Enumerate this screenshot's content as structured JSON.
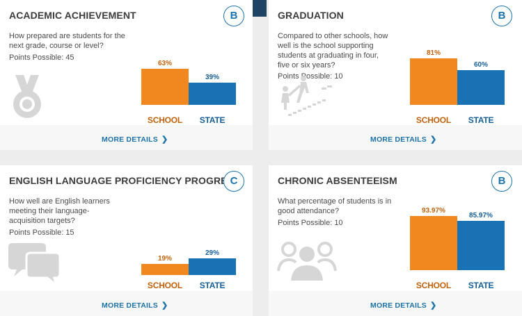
{
  "cards": [
    {
      "title": "ACADEMIC ACHIEVEMENT",
      "grade": "B",
      "question": "How prepared are students for the next grade, course or level?",
      "points": "Points Possible: 45",
      "more": "MORE DETAILS",
      "icon": "medal-icon",
      "chart_data": {
        "type": "bar",
        "categories": [
          "SCHOOL",
          "STATE"
        ],
        "values": [
          63,
          39
        ],
        "value_labels": [
          "63%",
          "39%"
        ]
      }
    },
    {
      "title": "GRADUATION",
      "grade": "B",
      "question": "Compared to other schools, how well is the school supporting students at graduating in four, five or six years?",
      "points": "Points Possible: 10",
      "more": "MORE DETAILS",
      "icon": "climbing-steps-icon",
      "chart_data": {
        "type": "bar",
        "categories": [
          "SCHOOL",
          "STATE"
        ],
        "values": [
          81,
          60
        ],
        "value_labels": [
          "81%",
          "60%"
        ]
      }
    },
    {
      "title": "ENGLISH LANGUAGE PROFICIENCY PROGRESS",
      "grade": "C",
      "question": "How well are English learners meeting their language-acquisition targets?",
      "points": "Points Possible: 15",
      "more": "MORE DETAILS",
      "icon": "speech-bubbles-icon",
      "chart_data": {
        "type": "bar",
        "categories": [
          "SCHOOL",
          "STATE"
        ],
        "values": [
          19,
          29
        ],
        "value_labels": [
          "19%",
          "29%"
        ]
      }
    },
    {
      "title": "CHRONIC ABSENTEEISM",
      "grade": "B",
      "question": "What percentage of students is in good attendance?",
      "points": "Points Possible: 10",
      "more": "MORE DETAILS",
      "icon": "people-group-icon",
      "chart_data": {
        "type": "bar",
        "categories": [
          "SCHOOL",
          "STATE"
        ],
        "values": [
          93.97,
          85.97
        ],
        "value_labels": [
          "93.97%",
          "85.97%"
        ]
      }
    }
  ]
}
